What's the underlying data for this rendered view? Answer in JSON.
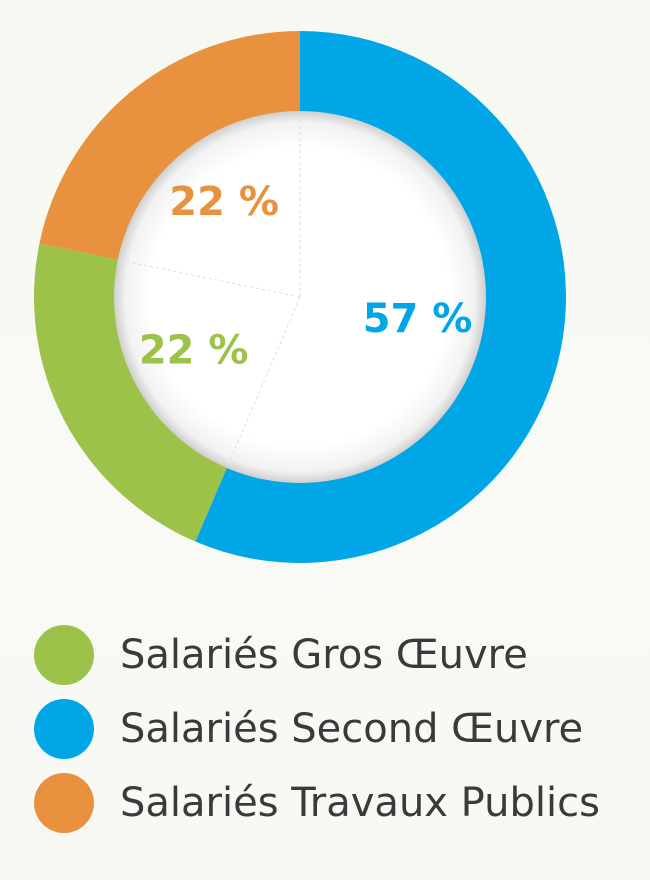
{
  "chart_data": {
    "type": "pie",
    "categories": [
      "Salariés Gros Œuvre",
      "Salariés Second Œuvre",
      "Salariés Travaux Publics"
    ],
    "values": [
      22,
      57,
      22
    ],
    "labels": [
      "22 %",
      "57 %",
      "22 %"
    ],
    "colors": [
      "#9dc24a",
      "#00a6e6",
      "#e8923f"
    ],
    "legend_position": "bottom",
    "style": "donut"
  },
  "legend": {
    "items": [
      {
        "label": "Salariés Gros Œuvre",
        "color": "#9dc24a"
      },
      {
        "label": "Salariés Second Œuvre",
        "color": "#00a6e6"
      },
      {
        "label": "Salariés Travaux Publics",
        "color": "#e8923f"
      }
    ]
  }
}
